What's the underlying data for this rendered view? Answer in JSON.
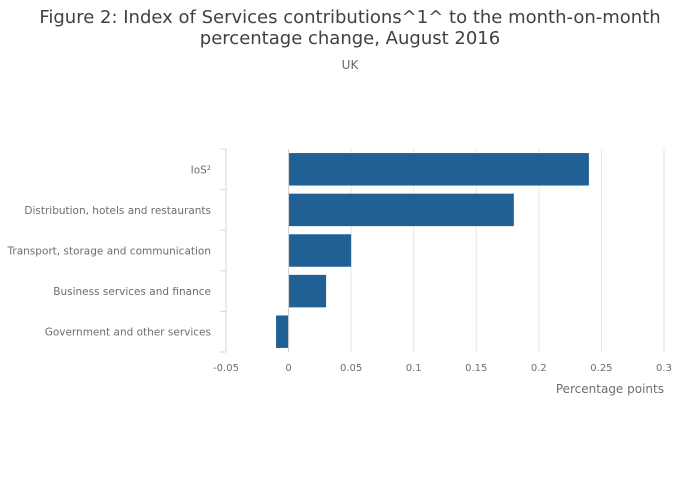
{
  "figure": {
    "title_line1": "Figure 2: Index of Services contributions^1^ to the month-on-month",
    "title_line2": "percentage change, August 2016",
    "subtitle": "UK"
  },
  "chart_data": {
    "type": "bar",
    "orientation": "horizontal",
    "categories": [
      "IoS²",
      "Distribution, hotels and restaurants",
      "Transport, storage and communication",
      "Business services and finance",
      "Government and other services"
    ],
    "values": [
      0.24,
      0.18,
      0.05,
      0.03,
      -0.01
    ],
    "xlabel": "Percentage points",
    "ylabel": "",
    "xlim": [
      -0.05,
      0.3
    ],
    "xticks": [
      "-0.05",
      "0",
      "0.05",
      "0.1",
      "0.15",
      "0.2",
      "0.25",
      "0.3"
    ],
    "bar_color": "#206095",
    "grid": true,
    "legend": "none"
  }
}
